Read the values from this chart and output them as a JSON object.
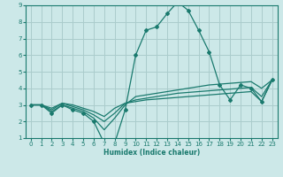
{
  "title": "",
  "xlabel": "Humidex (Indice chaleur)",
  "ylabel": "",
  "bg_color": "#cce8e8",
  "grid_color": "#aacccc",
  "line_color": "#1a7a6e",
  "xlim": [
    -0.5,
    23.5
  ],
  "ylim": [
    1,
    9
  ],
  "xticks": [
    0,
    1,
    2,
    3,
    4,
    5,
    6,
    7,
    8,
    9,
    10,
    11,
    12,
    13,
    14,
    15,
    16,
    17,
    18,
    19,
    20,
    21,
    22,
    23
  ],
  "yticks": [
    1,
    2,
    3,
    4,
    5,
    6,
    7,
    8,
    9
  ],
  "series": [
    [
      3.0,
      3.0,
      2.5,
      3.0,
      2.7,
      2.5,
      2.0,
      0.7,
      0.7,
      2.7,
      6.0,
      7.5,
      7.7,
      8.5,
      9.2,
      8.7,
      7.5,
      6.2,
      4.2,
      3.3,
      4.2,
      4.0,
      3.2,
      4.5
    ],
    [
      3.0,
      3.0,
      2.6,
      3.0,
      2.8,
      2.6,
      2.2,
      1.5,
      2.2,
      3.0,
      3.5,
      3.6,
      3.7,
      3.8,
      3.9,
      4.0,
      4.1,
      4.2,
      4.25,
      4.3,
      4.35,
      4.4,
      4.0,
      4.5
    ],
    [
      3.0,
      3.0,
      2.7,
      3.1,
      2.9,
      2.7,
      2.4,
      2.0,
      2.5,
      3.1,
      3.3,
      3.4,
      3.5,
      3.6,
      3.7,
      3.75,
      3.8,
      3.85,
      3.9,
      3.95,
      4.0,
      4.05,
      3.5,
      4.5
    ],
    [
      3.0,
      3.0,
      2.8,
      3.1,
      3.0,
      2.8,
      2.6,
      2.3,
      2.8,
      3.1,
      3.2,
      3.3,
      3.35,
      3.4,
      3.45,
      3.5,
      3.55,
      3.6,
      3.65,
      3.7,
      3.75,
      3.8,
      3.2,
      4.5
    ]
  ]
}
